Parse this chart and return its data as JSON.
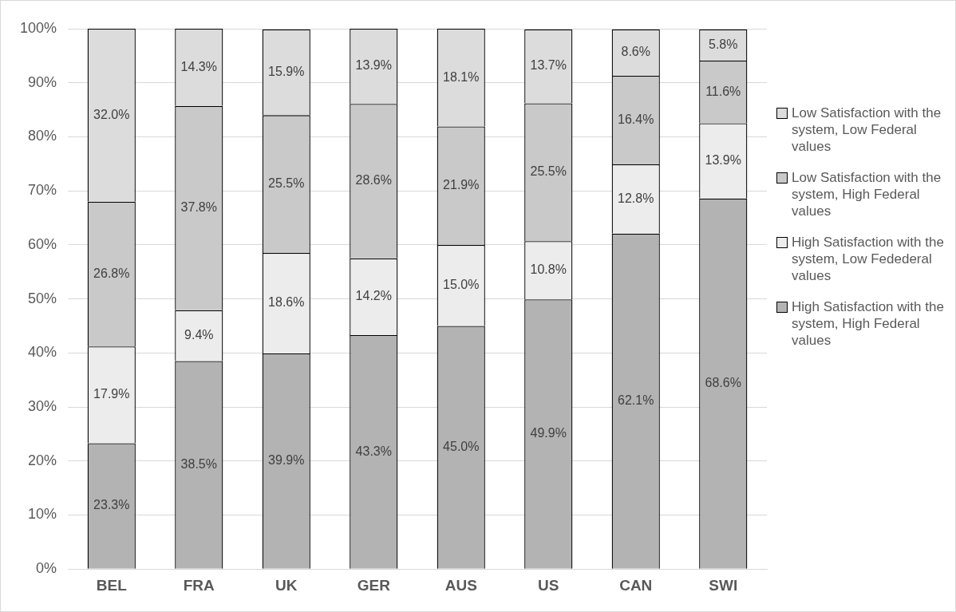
{
  "chart_data": {
    "type": "bar",
    "stacked": true,
    "categories": [
      "BEL",
      "FRA",
      "UK",
      "GER",
      "AUS",
      "US",
      "CAN",
      "SWI"
    ],
    "series": [
      {
        "name": "High Satisfaction with the system, High Federal values",
        "color": "#b3b3b3",
        "values": [
          23.3,
          38.5,
          39.9,
          43.3,
          45.0,
          49.9,
          62.1,
          68.6
        ],
        "value_labels": [
          "23.3%",
          "38.5%",
          "39.9%",
          "43.3%",
          "45.0%",
          "49.9%",
          "62.1%",
          "68.6%"
        ]
      },
      {
        "name": "High Satisfaction with the system, Low Fedederal values",
        "color": "#ececec",
        "values": [
          17.9,
          9.4,
          18.6,
          14.2,
          15.0,
          10.8,
          12.8,
          13.9
        ],
        "value_labels": [
          "17.9%",
          "9.4%",
          "18.6%",
          "14.2%",
          "15.0%",
          "10.8%",
          "12.8%",
          "13.9%"
        ]
      },
      {
        "name": "Low Satisfaction with the system, High Federal values",
        "color": "#c9c9c9",
        "values": [
          26.8,
          37.8,
          25.5,
          28.6,
          21.9,
          25.5,
          16.4,
          11.6
        ],
        "value_labels": [
          "26.8%",
          "37.8%",
          "25.5%",
          "28.6%",
          "21.9%",
          "25.5%",
          "16.4%",
          "11.6%"
        ]
      },
      {
        "name": "Low Satisfaction with the system, Low Federal values",
        "color": "#dcdcdc",
        "values": [
          32.0,
          14.3,
          15.9,
          13.9,
          18.1,
          13.7,
          8.6,
          5.8
        ],
        "value_labels": [
          "32.0%",
          "14.3%",
          "15.9%",
          "13.9%",
          "18.1%",
          "13.7%",
          "8.6%",
          "5.8%"
        ]
      }
    ],
    "ylim": [
      0,
      100
    ],
    "yticks": [
      {
        "value": 0,
        "label": "0%"
      },
      {
        "value": 10,
        "label": "10%"
      },
      {
        "value": 20,
        "label": "20%"
      },
      {
        "value": 30,
        "label": "30%"
      },
      {
        "value": 40,
        "label": "40%"
      },
      {
        "value": 50,
        "label": "50%"
      },
      {
        "value": 60,
        "label": "60%"
      },
      {
        "value": 70,
        "label": "70%"
      },
      {
        "value": 80,
        "label": "80%"
      },
      {
        "value": 90,
        "label": "90%"
      },
      {
        "value": 100,
        "label": "100%"
      }
    ],
    "grid": "y",
    "legend": "right"
  }
}
